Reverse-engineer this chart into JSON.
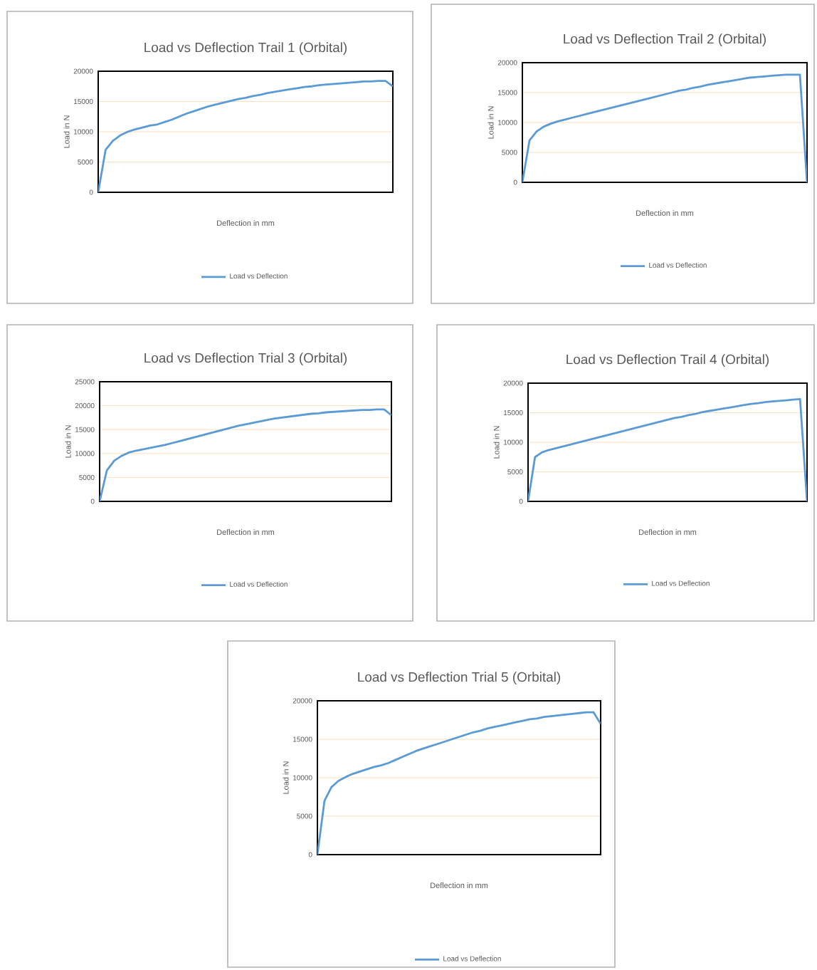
{
  "chart_data": [
    {
      "type": "line",
      "title": "Load vs Deflection Trail 1 (Orbital)",
      "xlabel": "Deflection in mm",
      "ylabel": "Load in N",
      "categories": [
        null,
        null,
        null,
        null,
        null,
        null,
        null,
        null,
        null,
        null,
        null,
        null,
        null,
        null,
        null,
        null,
        null,
        null,
        null,
        null,
        null,
        null,
        null,
        null,
        null,
        null,
        null,
        null,
        null,
        null,
        null,
        null,
        null,
        null,
        null,
        null,
        null,
        null,
        null,
        null,
        null
      ],
      "series": [
        {
          "name": "Load vs Deflection",
          "color": "#5b9bd5",
          "values": [
            0,
            7000,
            8500,
            9400,
            10000,
            10400,
            10700,
            11000,
            11200,
            11600,
            12000,
            12500,
            13000,
            13400,
            13800,
            14200,
            14500,
            14800,
            15100,
            15400,
            15600,
            15900,
            16100,
            16400,
            16600,
            16800,
            17000,
            17200,
            17400,
            17500,
            17700,
            17800,
            17900,
            18000,
            18100,
            18200,
            18300,
            18300,
            18400,
            18400,
            17500
          ]
        }
      ],
      "ylim": [
        0,
        20000
      ],
      "yticks": [
        0,
        5000,
        10000,
        15000,
        20000
      ],
      "grid": "y",
      "legend": "bottom"
    },
    {
      "type": "line",
      "title": "Load vs Deflection Trail 2 (Orbital)",
      "xlabel": "Deflection in mm",
      "ylabel": "Load in N",
      "categories": [
        null,
        null,
        null,
        null,
        null,
        null,
        null,
        null,
        null,
        null,
        null,
        null,
        null,
        null,
        null,
        null,
        null,
        null,
        null,
        null,
        null,
        null,
        null,
        null,
        null,
        null,
        null,
        null,
        null,
        null,
        null,
        null,
        null,
        null,
        null,
        null,
        null,
        null,
        null,
        null,
        null
      ],
      "series": [
        {
          "name": "Load vs Deflection",
          "color": "#5b9bd5",
          "values": [
            0,
            7000,
            8500,
            9300,
            9800,
            10200,
            10500,
            10800,
            11100,
            11400,
            11700,
            12000,
            12300,
            12600,
            12900,
            13200,
            13500,
            13800,
            14100,
            14400,
            14700,
            15000,
            15300,
            15500,
            15800,
            16000,
            16300,
            16500,
            16700,
            16900,
            17100,
            17300,
            17500,
            17600,
            17700,
            17800,
            17900,
            18000,
            18000,
            18000,
            0
          ]
        }
      ],
      "ylim": [
        0,
        20000
      ],
      "yticks": [
        0,
        5000,
        10000,
        15000,
        20000
      ],
      "grid": "y",
      "legend": "bottom"
    },
    {
      "type": "line",
      "title": "Load vs Deflection Trial 3 (Orbital)",
      "xlabel": "Deflection in mm",
      "ylabel": "Load in N",
      "categories": [
        null,
        null,
        null,
        null,
        null,
        null,
        null,
        null,
        null,
        null,
        null,
        null,
        null,
        null,
        null,
        null,
        null,
        null,
        null,
        null,
        null,
        null,
        null,
        null,
        null,
        null,
        null,
        null,
        null,
        null,
        null,
        null,
        null,
        null,
        null,
        null,
        null,
        null,
        null,
        null,
        null
      ],
      "series": [
        {
          "name": "Load vs Deflection",
          "color": "#5b9bd5",
          "values": [
            0,
            6500,
            8500,
            9500,
            10200,
            10600,
            10900,
            11200,
            11500,
            11800,
            12200,
            12600,
            13000,
            13400,
            13800,
            14200,
            14600,
            15000,
            15400,
            15800,
            16100,
            16400,
            16700,
            17000,
            17300,
            17500,
            17700,
            17900,
            18100,
            18300,
            18400,
            18600,
            18700,
            18800,
            18900,
            19000,
            19100,
            19100,
            19200,
            19200,
            18000
          ]
        }
      ],
      "ylim": [
        0,
        25000
      ],
      "yticks": [
        0,
        5000,
        10000,
        15000,
        20000,
        25000
      ],
      "grid": "y",
      "legend": "bottom"
    },
    {
      "type": "line",
      "title": "Load vs Deflection Trail 4 (Orbital)",
      "xlabel": "Deflection in mm",
      "ylabel": "Load in N",
      "categories": [
        null,
        null,
        null,
        null,
        null,
        null,
        null,
        null,
        null,
        null,
        null,
        null,
        null,
        null,
        null,
        null,
        null,
        null,
        null,
        null,
        null,
        null,
        null,
        null,
        null,
        null,
        null,
        null,
        null,
        null,
        null,
        null,
        null,
        null,
        null,
        null,
        null,
        null,
        null,
        null,
        null
      ],
      "series": [
        {
          "name": "Load vs Deflection",
          "color": "#5b9bd5",
          "values": [
            0,
            7500,
            8300,
            8700,
            9000,
            9300,
            9600,
            9900,
            10200,
            10500,
            10800,
            11100,
            11400,
            11700,
            12000,
            12300,
            12600,
            12900,
            13200,
            13500,
            13800,
            14100,
            14300,
            14600,
            14800,
            15100,
            15300,
            15500,
            15700,
            15900,
            16100,
            16300,
            16500,
            16600,
            16800,
            16900,
            17000,
            17100,
            17200,
            17300,
            0
          ]
        }
      ],
      "ylim": [
        0,
        20000
      ],
      "yticks": [
        0,
        5000,
        10000,
        15000,
        20000
      ],
      "grid": "y",
      "legend": "bottom"
    },
    {
      "type": "line",
      "title": "Load vs Deflection Trial 5 (Orbital)",
      "xlabel": "Deflection in mm",
      "ylabel": "Load in N",
      "categories": [
        null,
        null,
        null,
        null,
        null,
        null,
        null,
        null,
        null,
        null,
        null,
        null,
        null,
        null,
        null,
        null,
        null,
        null,
        null,
        null,
        null,
        null,
        null,
        null,
        null,
        null,
        null,
        null,
        null,
        null,
        null,
        null,
        null,
        null,
        null,
        null,
        null,
        null,
        null,
        null,
        null
      ],
      "series": [
        {
          "name": "Load vs Deflection",
          "color": "#5b9bd5",
          "values": [
            0,
            7000,
            8800,
            9600,
            10100,
            10500,
            10800,
            11100,
            11400,
            11600,
            11900,
            12300,
            12700,
            13100,
            13500,
            13800,
            14100,
            14400,
            14700,
            15000,
            15300,
            15600,
            15900,
            16100,
            16400,
            16600,
            16800,
            17000,
            17200,
            17400,
            17600,
            17700,
            17900,
            18000,
            18100,
            18200,
            18300,
            18400,
            18500,
            18500,
            17000
          ]
        }
      ],
      "ylim": [
        0,
        20000
      ],
      "yticks": [
        0,
        5000,
        10000,
        15000,
        20000
      ],
      "grid": "y",
      "legend": "bottom"
    }
  ]
}
